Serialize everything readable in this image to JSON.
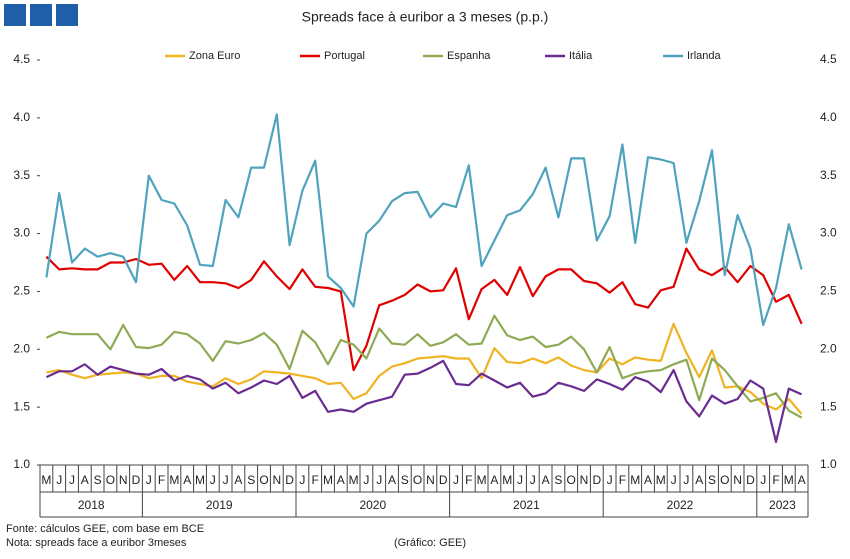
{
  "chart_data": {
    "type": "line",
    "title": "Spreads face à euribor a 3 meses (p.p.)",
    "categories": [
      "M",
      "J",
      "J",
      "A",
      "S",
      "O",
      "N",
      "D",
      "J",
      "F",
      "M",
      "A",
      "M",
      "J",
      "J",
      "A",
      "S",
      "O",
      "N",
      "D",
      "J",
      "F",
      "M",
      "A",
      "M",
      "J",
      "J",
      "A",
      "S",
      "O",
      "N",
      "D",
      "J",
      "F",
      "M",
      "A",
      "M",
      "J",
      "J",
      "A",
      "S",
      "O",
      "N",
      "D",
      "J",
      "F",
      "M",
      "A",
      "M",
      "J",
      "J",
      "A",
      "S",
      "O",
      "N",
      "D",
      "J",
      "F",
      "M",
      "A"
    ],
    "years": [
      "2018",
      "2019",
      "2020",
      "2021",
      "2022",
      "2023"
    ],
    "ylim": [
      1,
      4.5
    ],
    "yticks": [
      {
        "value": 1,
        "label": "1.0"
      },
      {
        "value": 1.5,
        "label": "1.5"
      },
      {
        "value": 2,
        "label": "2.0"
      },
      {
        "value": 2.5,
        "label": "2.5"
      },
      {
        "value": 3,
        "label": "3.0"
      },
      {
        "value": 3.5,
        "label": "3.5"
      },
      {
        "value": 4,
        "label": "4.0"
      },
      {
        "value": 4.5,
        "label": "4.5"
      }
    ],
    "series": [
      {
        "name": "Zona Euro",
        "color": "#f0b323",
        "values": [
          1.8,
          1.82,
          1.78,
          1.75,
          1.78,
          1.79,
          1.8,
          1.79,
          1.75,
          1.77,
          1.77,
          1.72,
          1.7,
          1.68,
          1.75,
          1.7,
          1.74,
          1.81,
          1.8,
          1.79,
          1.77,
          1.75,
          1.7,
          1.71,
          1.57,
          1.62,
          1.77,
          1.85,
          1.88,
          1.92,
          1.93,
          1.94,
          1.92,
          1.92,
          1.75,
          2.01,
          1.89,
          1.88,
          1.92,
          1.88,
          1.93,
          1.86,
          1.82,
          1.8,
          1.92,
          1.87,
          1.93,
          1.91,
          1.9,
          2.22,
          1.97,
          1.76,
          1.99,
          1.67,
          1.68,
          1.63,
          1.53,
          1.48,
          1.57,
          1.44
        ]
      },
      {
        "name": "Portugal",
        "color": "#e00000",
        "values": [
          2.8,
          2.69,
          2.7,
          2.69,
          2.69,
          2.75,
          2.75,
          2.78,
          2.73,
          2.74,
          2.6,
          2.72,
          2.58,
          2.58,
          2.57,
          2.53,
          2.6,
          2.76,
          2.63,
          2.52,
          2.69,
          2.54,
          2.53,
          2.5,
          1.82,
          2.03,
          2.38,
          2.42,
          2.47,
          2.56,
          2.5,
          2.51,
          2.7,
          2.26,
          2.52,
          2.6,
          2.47,
          2.71,
          2.46,
          2.63,
          2.69,
          2.69,
          2.59,
          2.57,
          2.49,
          2.58,
          2.39,
          2.36,
          2.51,
          2.54,
          2.87,
          2.69,
          2.64,
          2.71,
          2.58,
          2.72,
          2.64,
          2.41,
          2.47,
          2.22
        ]
      },
      {
        "name": "Espanha",
        "color": "#8faa54",
        "values": [
          2.1,
          2.15,
          2.13,
          2.13,
          2.13,
          2.0,
          2.21,
          2.02,
          2.01,
          2.04,
          2.15,
          2.13,
          2.05,
          1.9,
          2.07,
          2.05,
          2.08,
          2.14,
          2.04,
          1.83,
          2.16,
          2.06,
          1.87,
          2.08,
          2.04,
          1.92,
          2.18,
          2.05,
          2.04,
          2.13,
          2.03,
          2.06,
          2.13,
          2.04,
          2.05,
          2.29,
          2.12,
          2.08,
          2.11,
          2.02,
          2.04,
          2.11,
          2.0,
          1.8,
          2.02,
          1.75,
          1.79,
          1.81,
          1.82,
          1.87,
          1.91,
          1.56,
          1.92,
          1.82,
          1.68,
          1.55,
          1.58,
          1.62,
          1.47,
          1.41
        ]
      },
      {
        "name": "Itália",
        "color": "#6a2c91",
        "values": [
          1.76,
          1.81,
          1.81,
          1.87,
          1.78,
          1.85,
          1.82,
          1.79,
          1.78,
          1.83,
          1.73,
          1.77,
          1.74,
          1.66,
          1.71,
          1.62,
          1.67,
          1.73,
          1.7,
          1.77,
          1.58,
          1.64,
          1.46,
          1.48,
          1.46,
          1.53,
          1.56,
          1.59,
          1.78,
          1.79,
          1.84,
          1.9,
          1.7,
          1.69,
          1.79,
          1.73,
          1.67,
          1.71,
          1.59,
          1.62,
          1.71,
          1.68,
          1.64,
          1.74,
          1.7,
          1.65,
          1.76,
          1.72,
          1.63,
          1.82,
          1.55,
          1.42,
          1.6,
          1.53,
          1.57,
          1.73,
          1.66,
          1.2,
          1.66,
          1.61
        ]
      },
      {
        "name": "Irlanda",
        "color": "#4fa3bf",
        "values": [
          2.62,
          3.35,
          2.75,
          2.87,
          2.8,
          2.83,
          2.8,
          2.58,
          3.5,
          3.29,
          3.26,
          3.07,
          2.73,
          2.72,
          3.29,
          3.14,
          3.57,
          3.57,
          4.03,
          2.9,
          3.37,
          3.63,
          2.63,
          2.53,
          2.37,
          3.0,
          3.11,
          3.28,
          3.35,
          3.36,
          3.14,
          3.26,
          3.23,
          3.59,
          2.72,
          2.94,
          3.16,
          3.2,
          3.34,
          3.57,
          3.14,
          3.65,
          3.65,
          2.94,
          3.15,
          3.77,
          2.92,
          3.66,
          3.64,
          3.61,
          2.92,
          3.28,
          3.72,
          2.64,
          3.16,
          2.87,
          2.21,
          2.53,
          3.08,
          2.69
        ]
      }
    ],
    "source": "Fonte: cálculos GEE, com base em BCE",
    "note": "Nota: spreads face a euribor 3meses",
    "credit": "(Gráfico: GEE)"
  }
}
